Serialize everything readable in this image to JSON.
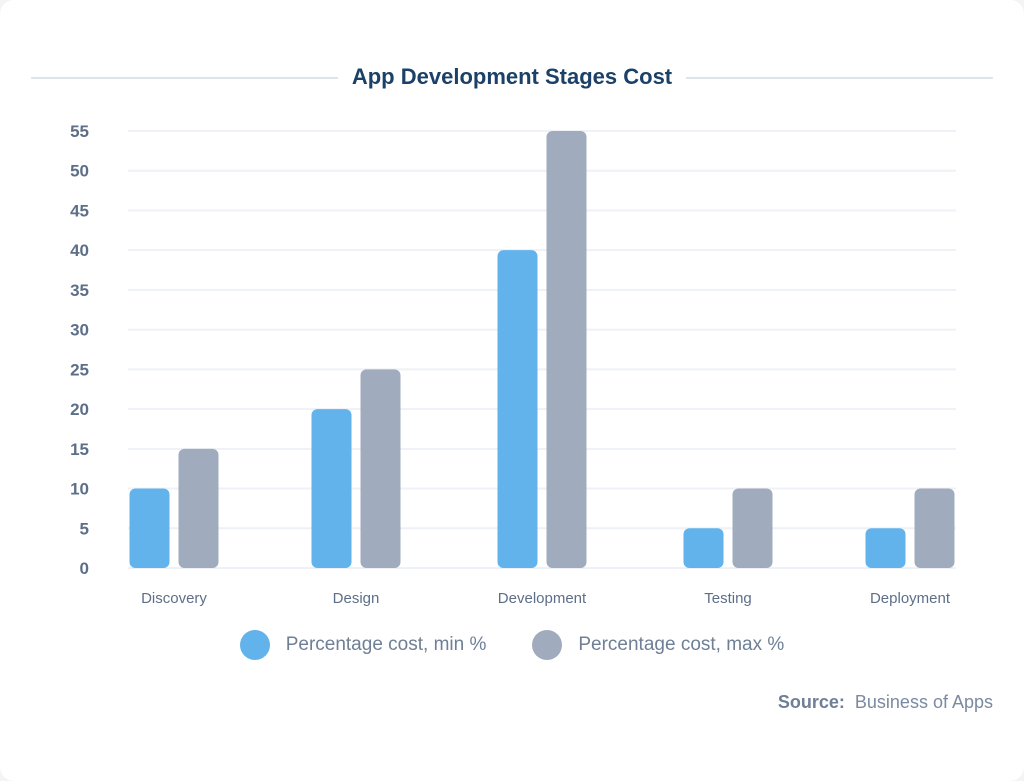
{
  "chart_data": {
    "type": "bar",
    "title": "App Development Stages Cost",
    "categories": [
      "Discovery",
      "Design",
      "Development",
      "Testing",
      "Deployment"
    ],
    "series": [
      {
        "name": "Percentage cost, min %",
        "values": [
          10,
          20,
          40,
          5,
          5
        ],
        "color": "#62b2ec"
      },
      {
        "name": "Percentage cost, max %",
        "values": [
          15,
          25,
          55,
          10,
          10
        ],
        "color": "#a0acbd"
      }
    ],
    "yticks": [
      0,
      5,
      10,
      15,
      20,
      25,
      30,
      35,
      40,
      45,
      50,
      55
    ],
    "ylim": [
      0,
      55
    ],
    "grid": true,
    "legend": "bottom",
    "xlabel": "",
    "ylabel": ""
  },
  "source": {
    "label": "Source:",
    "value": "Business of Apps"
  }
}
